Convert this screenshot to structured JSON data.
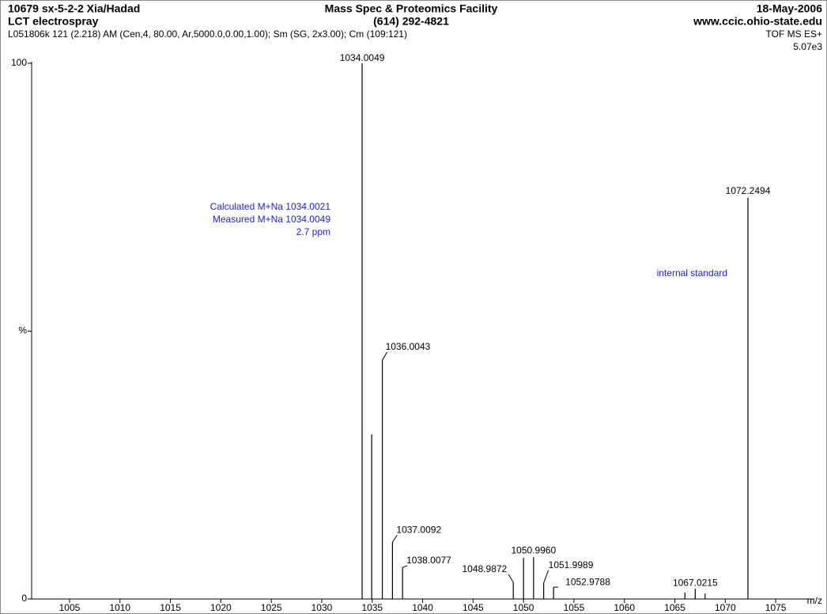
{
  "header": {
    "sample": "10679  sx-5-2-2  Xia/Hadad",
    "instrument": "LCT electrospray",
    "facility": "Mass Spec & Proteomics Facility",
    "phone": "(614) 292-4821",
    "date": "18-May-2006",
    "website": "www.ccic.ohio-state.edu",
    "scan_info": "L051806k 121 (2.218) AM (Cen,4, 80.00, Ar,5000.0,0.00,1.00); Sm (SG, 2x3.00); Cm (109:121)",
    "mode": "TOF MS ES+",
    "intensity": "5.07e3"
  },
  "chart_data": {
    "type": "bar",
    "x_label": "m/z",
    "color": "#000000",
    "x": [
      1034.0049,
      1034.95,
      1036.0043,
      1037.0092,
      1038.0077,
      1048.9872,
      1050.0,
      1050.996,
      1051.9989,
      1052.9788,
      1066.0,
      1067.0215,
      1068.0,
      1072.2494
    ],
    "values": [
      100,
      30.7,
      44.6,
      10.6,
      5.9,
      3.1,
      7.7,
      7.8,
      3.0,
      2.2,
      1.2,
      1.9,
      1.0,
      74.9
    ],
    "peak_labels": [
      "1034.0049",
      null,
      "1036.0043",
      "1037.0092",
      "1038.0077",
      "1048.9872",
      null,
      "1050.9960",
      "1051.9989",
      "1052.9788",
      null,
      "1067.0215",
      null,
      "1072.2494"
    ],
    "xlim": [
      1001.24,
      1078.83
    ],
    "xticks": [
      1005,
      1010,
      1015,
      1020,
      1025,
      1030,
      1035,
      1040,
      1045,
      1050,
      1055,
      1060,
      1065,
      1070,
      1075
    ],
    "ylim": [
      0,
      100
    ],
    "yticks": [
      0,
      {
        "value": 50,
        "label": "%"
      },
      100
    ],
    "annotations": [
      {
        "text": "Calculated M+Na 1034.0021",
        "color": "#2222cc"
      },
      {
        "text": "Measured  M+Na 1034.0049",
        "color": "#2222cc"
      },
      {
        "text": "2.7 ppm",
        "color": "#2222cc"
      },
      {
        "text": "internal standard",
        "color": "#2222cc"
      }
    ]
  }
}
